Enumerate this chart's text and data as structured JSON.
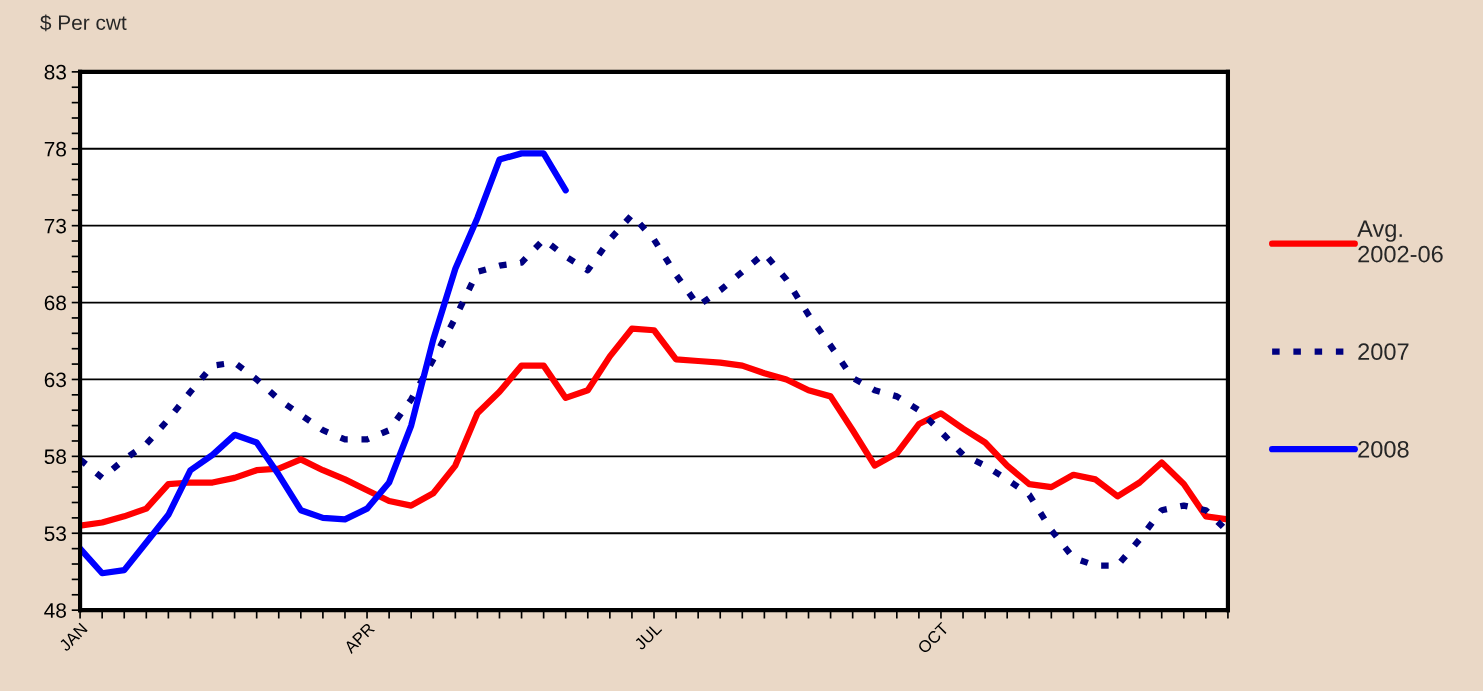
{
  "chart_data": {
    "type": "line",
    "ylabel": "$ Per cwt",
    "categories": [
      "JAN",
      null,
      null,
      null,
      null,
      null,
      null,
      null,
      null,
      null,
      null,
      null,
      null,
      "APR",
      null,
      null,
      null,
      null,
      null,
      null,
      null,
      null,
      null,
      null,
      null,
      null,
      "JUL",
      null,
      null,
      null,
      null,
      null,
      null,
      null,
      null,
      null,
      null,
      null,
      null,
      "OCT",
      null,
      null,
      null,
      null,
      null,
      null,
      null,
      null,
      null,
      null,
      null,
      null,
      null
    ],
    "ylim": [
      48,
      83
    ],
    "yticks": [
      48,
      {
        "value": 49,
        "label": null
      },
      {
        "value": 50,
        "label": null
      },
      {
        "value": 51,
        "label": null
      },
      {
        "value": 52,
        "label": null
      },
      53,
      {
        "value": 54,
        "label": null
      },
      {
        "value": 55,
        "label": null
      },
      {
        "value": 56,
        "label": null
      },
      {
        "value": 57,
        "label": null
      },
      58,
      {
        "value": 59,
        "label": null
      },
      {
        "value": 60,
        "label": null
      },
      {
        "value": 61,
        "label": null
      },
      {
        "value": 62,
        "label": null
      },
      63,
      {
        "value": 64,
        "label": null
      },
      {
        "value": 65,
        "label": null
      },
      {
        "value": 66,
        "label": null
      },
      {
        "value": 67,
        "label": null
      },
      68,
      {
        "value": 69,
        "label": null
      },
      {
        "value": 70,
        "label": null
      },
      {
        "value": 71,
        "label": null
      },
      {
        "value": 72,
        "label": null
      },
      73,
      {
        "value": 74,
        "label": null
      },
      {
        "value": 75,
        "label": null
      },
      {
        "value": 76,
        "label": null
      },
      {
        "value": 77,
        "label": null
      },
      78,
      {
        "value": 79,
        "label": null
      },
      {
        "value": 80,
        "label": null
      },
      {
        "value": 81,
        "label": null
      },
      {
        "value": 82,
        "label": null
      },
      83
    ],
    "grid": "y",
    "legend": "right",
    "series": [
      {
        "name": "Avg.\n2002-06",
        "color": "#ff0000",
        "line_style": "solid",
        "values": [
          53.5,
          53.7,
          54.1,
          54.6,
          56.2,
          56.3,
          56.3,
          56.6,
          57.1,
          57.2,
          57.8,
          57.1,
          56.5,
          55.8,
          55.1,
          54.8,
          55.6,
          57.4,
          60.8,
          62.2,
          63.9,
          63.9,
          61.8,
          62.3,
          64.5,
          66.3,
          66.2,
          64.3,
          64.2,
          64.1,
          63.9,
          63.4,
          63.0,
          62.3,
          61.9,
          59.7,
          57.4,
          58.2,
          60.1,
          60.8,
          59.8,
          58.9,
          57.4,
          56.2,
          56.0,
          56.8,
          56.5,
          55.4,
          56.3,
          57.6,
          56.2,
          54.1,
          53.9
        ]
      },
      {
        "name": "2007",
        "color": "#000080",
        "line_style": "dashed",
        "values": [
          57.8,
          56.6,
          57.8,
          58.8,
          60.4,
          62.2,
          63.9,
          64.1,
          63.0,
          61.7,
          60.7,
          59.7,
          59.1,
          59.1,
          59.7,
          61.7,
          64.3,
          67.0,
          70.0,
          70.4,
          70.6,
          72.1,
          71.0,
          70.1,
          72.1,
          73.7,
          72.1,
          69.8,
          67.8,
          68.8,
          70.0,
          71.2,
          69.5,
          67.2,
          65.2,
          63.1,
          62.3,
          61.9,
          61.0,
          59.6,
          58.1,
          57.4,
          56.5,
          55.5,
          53.2,
          51.4,
          50.9,
          50.9,
          52.6,
          54.5,
          54.8,
          54.5,
          53.1
        ]
      },
      {
        "name": "2008",
        "color": "#0000ff",
        "line_style": "solid",
        "values": [
          52.0,
          50.4,
          50.6,
          52.4,
          54.2,
          57.1,
          58.1,
          59.4,
          58.9,
          56.8,
          54.5,
          54.0,
          53.9,
          54.6,
          56.3,
          60.0,
          65.6,
          70.2,
          73.5,
          77.3,
          77.7,
          77.7,
          75.3,
          null,
          null,
          null,
          null,
          null,
          null,
          null,
          null,
          null,
          null,
          null,
          null,
          null,
          null,
          null,
          null,
          null,
          null,
          null,
          null,
          null,
          null,
          null,
          null,
          null,
          null,
          null,
          null,
          null,
          null
        ]
      }
    ]
  }
}
